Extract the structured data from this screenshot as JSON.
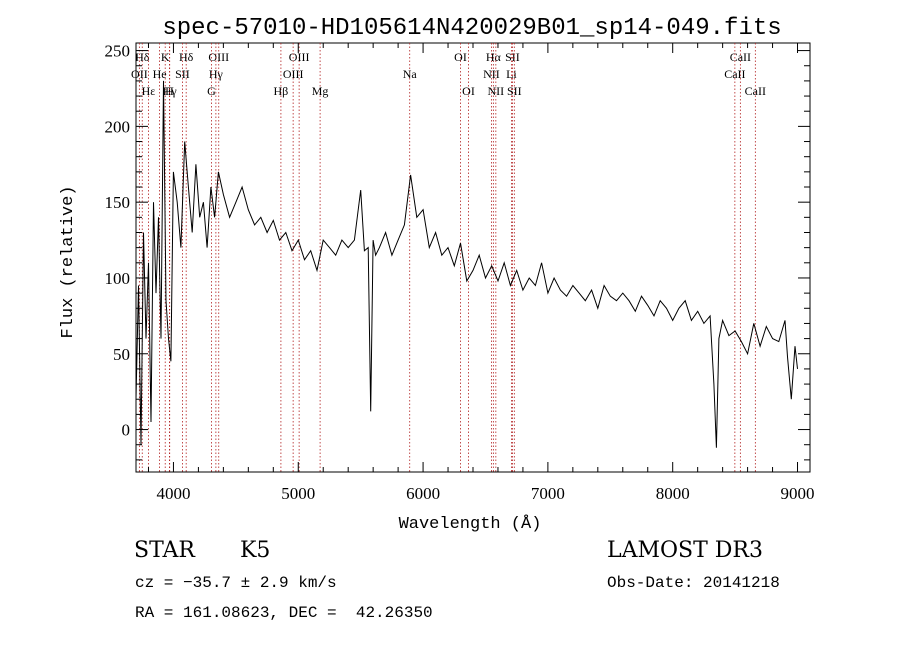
{
  "chart_data": {
    "type": "line",
    "title": "spec-57010-HD105614N420029B01_sp14-049.fits",
    "xlabel": "Wavelength (Å)",
    "ylabel": "Flux (relative)",
    "xlim": [
      3700,
      9100
    ],
    "ylim": [
      -28,
      255
    ],
    "xticks": [
      4000,
      5000,
      6000,
      7000,
      8000,
      9000
    ],
    "xtick_labels": [
      "4000",
      "5000",
      "6000",
      "7000",
      "8000",
      "9000"
    ],
    "yticks": [
      0,
      50,
      100,
      150,
      200,
      250
    ],
    "ytick_labels": [
      "0",
      "50",
      "100",
      "150",
      "200",
      "250"
    ],
    "series": [
      {
        "name": "flux",
        "x": [
          3700,
          3720,
          3740,
          3760,
          3780,
          3800,
          3820,
          3840,
          3860,
          3880,
          3900,
          3920,
          3940,
          3960,
          3980,
          4000,
          4030,
          4060,
          4090,
          4120,
          4150,
          4180,
          4210,
          4240,
          4270,
          4300,
          4330,
          4360,
          4400,
          4450,
          4500,
          4550,
          4600,
          4650,
          4700,
          4750,
          4800,
          4850,
          4900,
          4950,
          5000,
          5050,
          5100,
          5150,
          5200,
          5250,
          5300,
          5350,
          5400,
          5450,
          5500,
          5530,
          5560,
          5580,
          5600,
          5620,
          5650,
          5700,
          5750,
          5800,
          5850,
          5900,
          5950,
          6000,
          6050,
          6100,
          6150,
          6200,
          6250,
          6300,
          6350,
          6400,
          6450,
          6500,
          6550,
          6600,
          6650,
          6700,
          6750,
          6800,
          6850,
          6900,
          6950,
          7000,
          7050,
          7100,
          7150,
          7200,
          7250,
          7300,
          7350,
          7400,
          7450,
          7500,
          7550,
          7600,
          7650,
          7700,
          7750,
          7800,
          7850,
          7900,
          7950,
          8000,
          8050,
          8100,
          8150,
          8200,
          8250,
          8300,
          8330,
          8350,
          8370,
          8400,
          8450,
          8500,
          8550,
          8600,
          8650,
          8700,
          8750,
          8800,
          8850,
          8900,
          8920,
          8950,
          8980,
          9000
        ],
        "y": [
          20,
          95,
          -10,
          130,
          60,
          110,
          5,
          150,
          90,
          140,
          60,
          230,
          85,
          60,
          45,
          170,
          150,
          120,
          190,
          160,
          130,
          175,
          140,
          150,
          120,
          160,
          140,
          170,
          155,
          140,
          150,
          160,
          145,
          135,
          140,
          130,
          138,
          125,
          130,
          118,
          125,
          112,
          118,
          105,
          125,
          120,
          115,
          125,
          120,
          125,
          158,
          118,
          120,
          12,
          125,
          115,
          120,
          130,
          115,
          125,
          135,
          168,
          140,
          145,
          120,
          130,
          115,
          120,
          108,
          123,
          98,
          105,
          115,
          100,
          108,
          98,
          110,
          95,
          105,
          92,
          100,
          95,
          110,
          90,
          100,
          92,
          88,
          95,
          90,
          85,
          92,
          80,
          95,
          88,
          85,
          90,
          85,
          78,
          88,
          82,
          75,
          85,
          80,
          72,
          80,
          85,
          72,
          78,
          70,
          75,
          30,
          -12,
          60,
          72,
          62,
          65,
          58,
          50,
          70,
          55,
          68,
          60,
          58,
          72,
          48,
          20,
          55,
          40
        ]
      }
    ],
    "line_markers": [
      {
        "label": "Hδ",
        "wl": 3750,
        "row": 1
      },
      {
        "label": "OII",
        "wl": 3727,
        "row": 2
      },
      {
        "label": "Hε",
        "wl": 3800,
        "row": 3
      },
      {
        "label": "K",
        "wl": 3934,
        "row": 1
      },
      {
        "label": "He",
        "wl": 3889,
        "row": 2
      },
      {
        "label": "Hγ",
        "wl": 3970,
        "row": 3
      },
      {
        "label": "H",
        "wl": 3968,
        "row": 3
      },
      {
        "label": "Hδ",
        "wl": 4102,
        "row": 1
      },
      {
        "label": "SII",
        "wl": 4072,
        "row": 2
      },
      {
        "label": "OIII",
        "wl": 4363,
        "row": 1
      },
      {
        "label": "Hγ",
        "wl": 4340,
        "row": 2
      },
      {
        "label": "G",
        "wl": 4305,
        "row": 3
      },
      {
        "label": "Hβ",
        "wl": 4861,
        "row": 3
      },
      {
        "label": "OIII",
        "wl": 5007,
        "row": 1
      },
      {
        "label": "OIII",
        "wl": 4959,
        "row": 2
      },
      {
        "label": "Mg",
        "wl": 5175,
        "row": 3
      },
      {
        "label": "Na",
        "wl": 5893,
        "row": 2
      },
      {
        "label": "OI",
        "wl": 6300,
        "row": 1
      },
      {
        "label": "OI",
        "wl": 6364,
        "row": 3
      },
      {
        "label": "Hα",
        "wl": 6563,
        "row": 1
      },
      {
        "label": "NII",
        "wl": 6548,
        "row": 2
      },
      {
        "label": "NII",
        "wl": 6583,
        "row": 3
      },
      {
        "label": "SII",
        "wl": 6716,
        "row": 1
      },
      {
        "label": "Li",
        "wl": 6708,
        "row": 2
      },
      {
        "label": "SII",
        "wl": 6731,
        "row": 3
      },
      {
        "label": "CaII",
        "wl": 8542,
        "row": 1
      },
      {
        "label": "CaII",
        "wl": 8498,
        "row": 2
      },
      {
        "label": "CaII",
        "wl": 8662,
        "row": 3
      }
    ]
  },
  "info": {
    "class_label": "STAR",
    "subclass": "K5",
    "survey": "LAMOST DR3",
    "redshift_text": "cz = −35.7 ± 2.9 km/s",
    "obs_date": "Obs-Date: 20141218",
    "coords": "RA = 161.08623, DEC =  42.26350"
  },
  "colors": {
    "spectrum": "#000000",
    "line_marker": "#b22222",
    "axes": "#000000",
    "background": "#ffffff"
  }
}
